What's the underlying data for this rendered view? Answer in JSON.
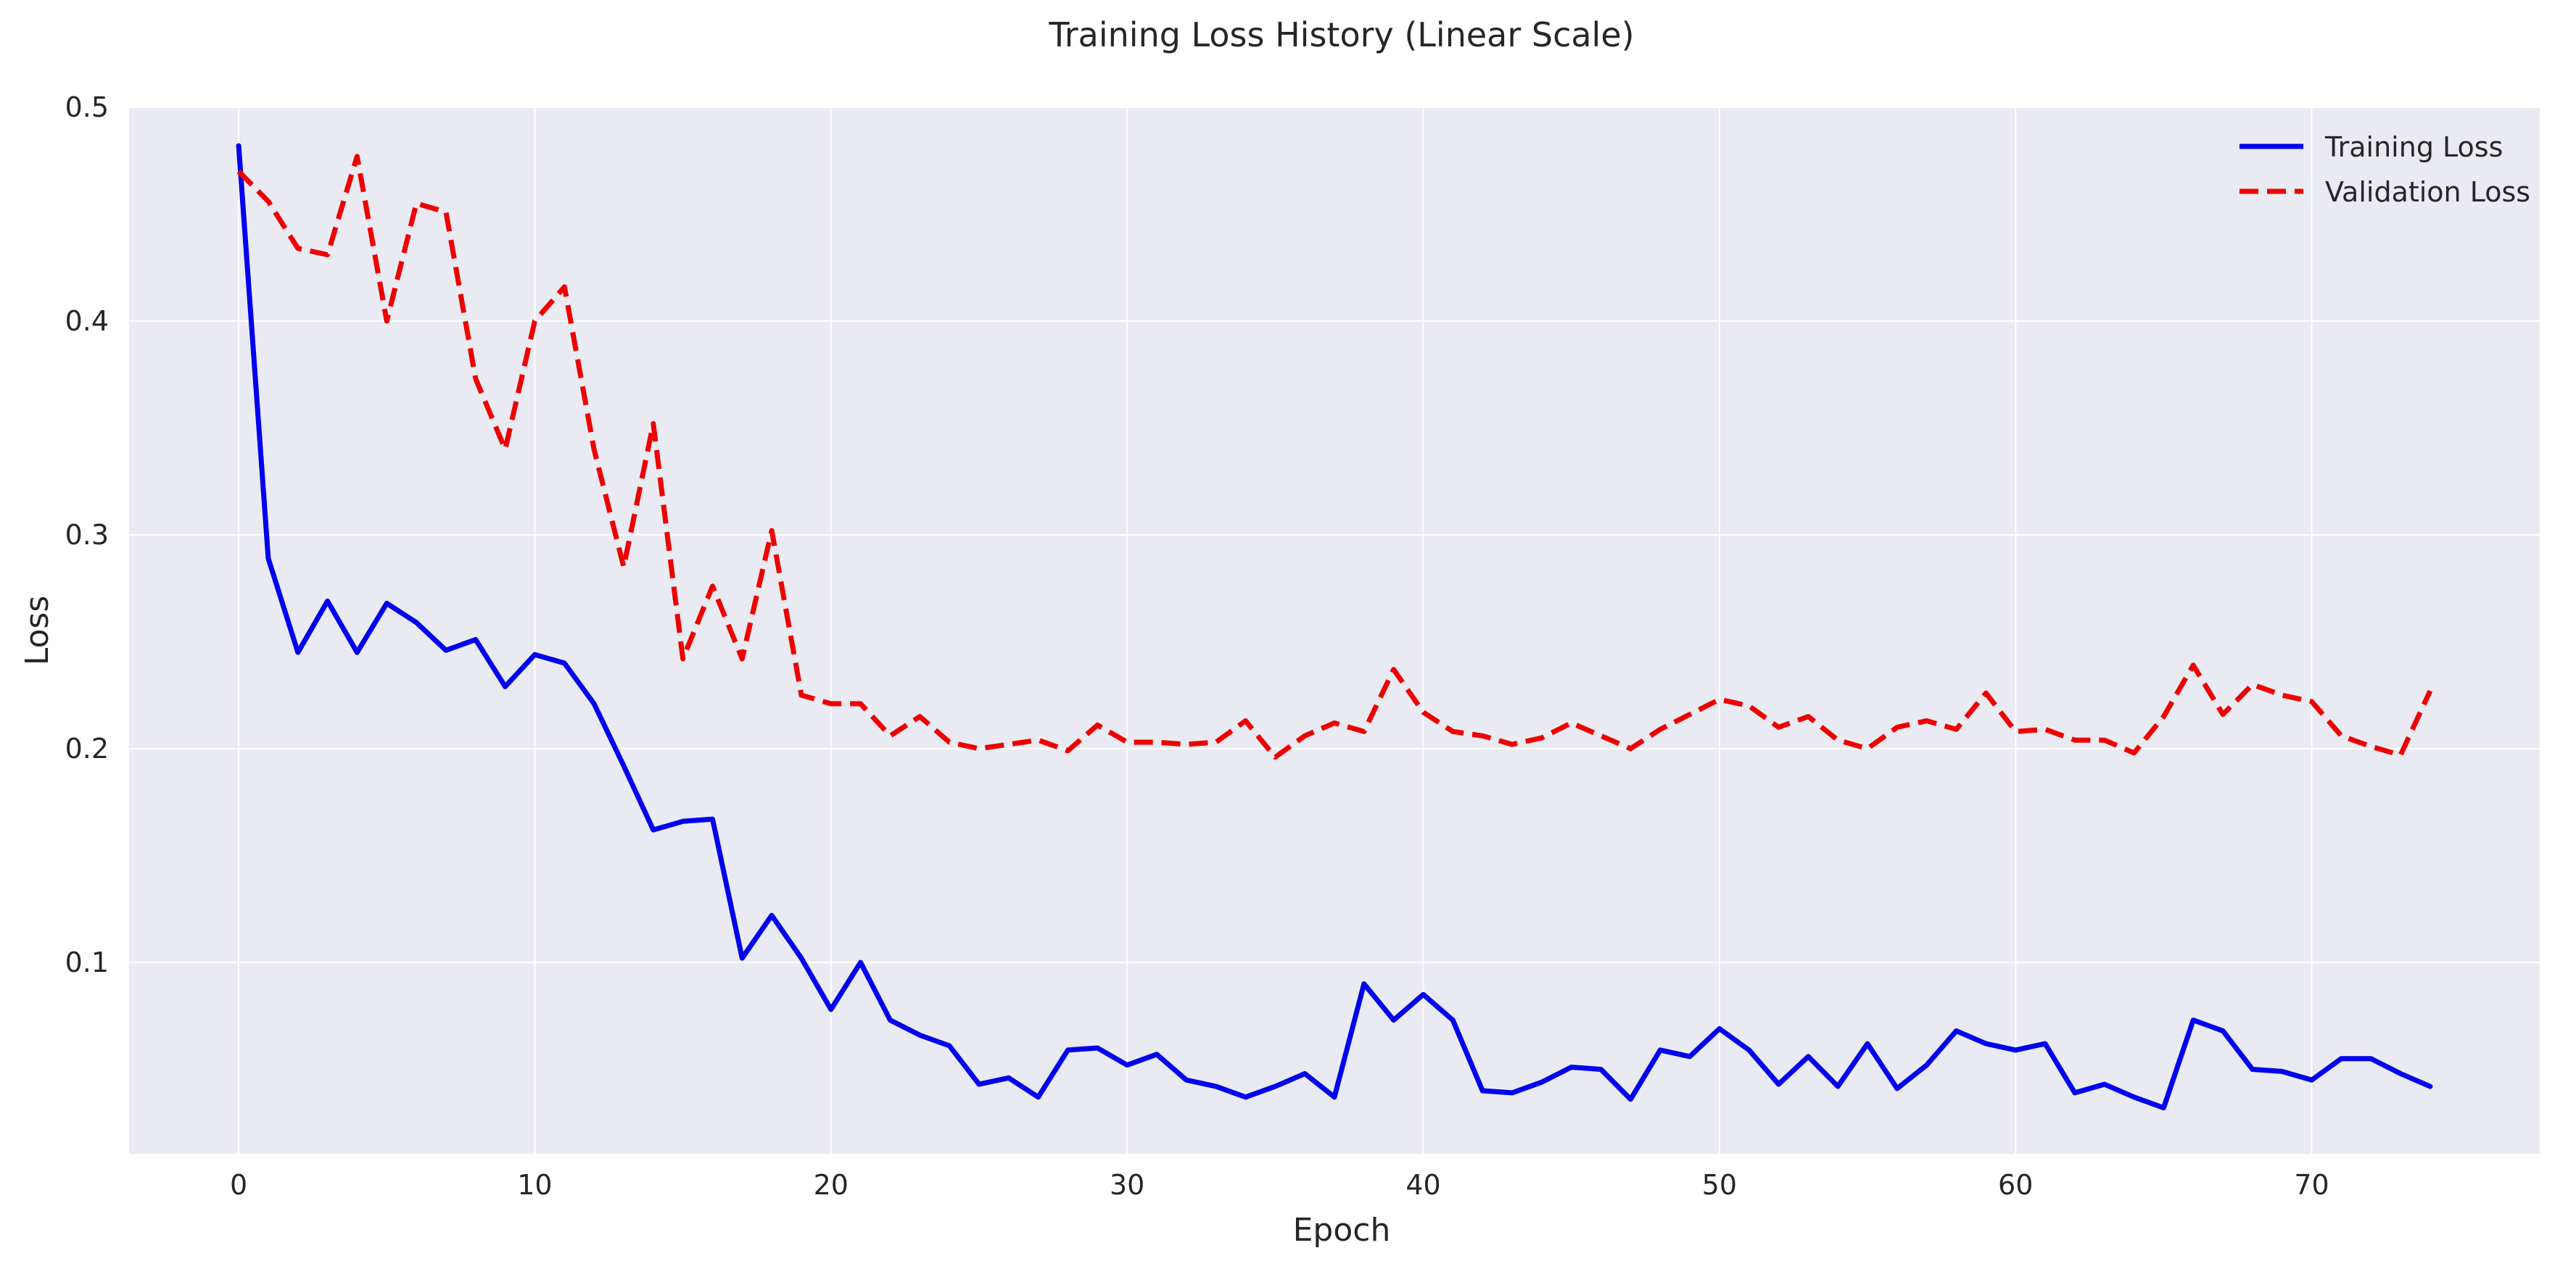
{
  "chart_data": {
    "type": "line",
    "title": "Training Loss History (Linear Scale)",
    "xlabel": "Epoch",
    "ylabel": "Loss",
    "xlim": [
      -3.7,
      77.7
    ],
    "ylim": [
      0.0105,
      0.5
    ],
    "xticks": [
      0,
      10,
      20,
      30,
      40,
      50,
      60,
      70
    ],
    "yticks": [
      0.1,
      0.2,
      0.3,
      0.4,
      0.5
    ],
    "grid": true,
    "legend_position": "top-right",
    "x": [
      0,
      1,
      2,
      3,
      4,
      5,
      6,
      7,
      8,
      9,
      10,
      11,
      12,
      13,
      14,
      15,
      16,
      17,
      18,
      19,
      20,
      21,
      22,
      23,
      24,
      25,
      26,
      27,
      28,
      29,
      30,
      31,
      32,
      33,
      34,
      35,
      36,
      37,
      38,
      39,
      40,
      41,
      42,
      43,
      44,
      45,
      46,
      47,
      48,
      49,
      50,
      51,
      52,
      53,
      54,
      55,
      56,
      57,
      58,
      59,
      60,
      61,
      62,
      63,
      64,
      65,
      66,
      67,
      68,
      69,
      70,
      71,
      72,
      73,
      74
    ],
    "series": [
      {
        "name": "Training Loss",
        "color": "#0000ee",
        "style": "solid",
        "values": [
          0.482,
          0.289,
          0.245,
          0.269,
          0.245,
          0.268,
          0.259,
          0.246,
          0.251,
          0.229,
          0.244,
          0.24,
          0.221,
          0.192,
          0.162,
          0.166,
          0.167,
          0.102,
          0.122,
          0.102,
          0.078,
          0.1,
          0.073,
          0.066,
          0.061,
          0.043,
          0.046,
          0.037,
          0.059,
          0.06,
          0.052,
          0.057,
          0.045,
          0.042,
          0.037,
          0.042,
          0.048,
          0.037,
          0.09,
          0.073,
          0.085,
          0.073,
          0.04,
          0.039,
          0.044,
          0.051,
          0.05,
          0.036,
          0.059,
          0.056,
          0.069,
          0.059,
          0.043,
          0.056,
          0.042,
          0.062,
          0.041,
          0.052,
          0.068,
          0.062,
          0.059,
          0.062,
          0.039,
          0.043,
          0.037,
          0.032,
          0.073,
          0.068,
          0.05,
          0.049,
          0.045,
          0.055,
          0.055,
          0.048,
          0.042
        ]
      },
      {
        "name": "Validation Loss",
        "color": "#ee0000",
        "style": "dashed",
        "values": [
          0.47,
          0.456,
          0.434,
          0.431,
          0.477,
          0.4,
          0.455,
          0.451,
          0.373,
          0.34,
          0.4,
          0.416,
          0.34,
          0.285,
          0.352,
          0.242,
          0.276,
          0.242,
          0.302,
          0.225,
          0.221,
          0.221,
          0.206,
          0.215,
          0.203,
          0.2,
          0.202,
          0.204,
          0.199,
          0.211,
          0.203,
          0.203,
          0.202,
          0.203,
          0.213,
          0.196,
          0.206,
          0.212,
          0.208,
          0.237,
          0.217,
          0.208,
          0.206,
          0.202,
          0.205,
          0.212,
          0.206,
          0.2,
          0.209,
          0.216,
          0.223,
          0.22,
          0.21,
          0.215,
          0.204,
          0.2,
          0.21,
          0.213,
          0.209,
          0.226,
          0.208,
          0.209,
          0.204,
          0.204,
          0.198,
          0.215,
          0.239,
          0.216,
          0.23,
          0.225,
          0.222,
          0.206,
          0.201,
          0.197,
          0.227
        ]
      }
    ]
  }
}
